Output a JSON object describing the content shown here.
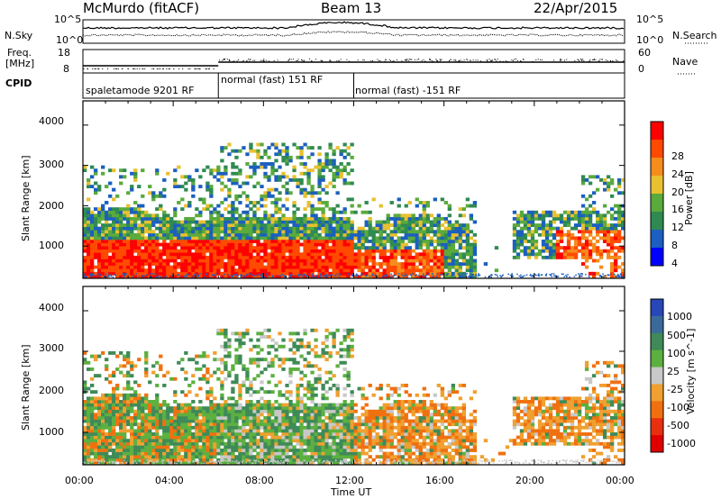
{
  "header": {
    "station": "McMurdo (fitACF)",
    "beam": "Beam 13",
    "date": "22/Apr/2015"
  },
  "strips": {
    "nsky_label": "N.Sky",
    "nsearch_label": "N.Search",
    "nsky_ticks": [
      "10^5",
      "10^0"
    ],
    "nsearch_ticks": [
      "10^5",
      "10^0"
    ],
    "freq_label_1": "Freq.",
    "freq_label_2": "[MHz]",
    "freq_ticks": [
      "18",
      "8"
    ],
    "nave_label": "Nave",
    "nave_ticks": [
      "60",
      "0"
    ],
    "cpid_label": "CPID",
    "cpid_segments": [
      {
        "label": "spaletamode 9201 RF",
        "start_hour": 0.0
      },
      {
        "label": "normal (fast) 151 RF",
        "start_hour": 6.0
      },
      {
        "label": "normal (fast) -151 RF",
        "start_hour": 12.0
      }
    ]
  },
  "chart_data": [
    {
      "type": "heatmap",
      "name": "Power",
      "ylabel": "Slant Range [km]",
      "ylim": [
        200,
        4600
      ],
      "yticks": [
        1000,
        2000,
        3000,
        4000
      ],
      "xlim": [
        0,
        24
      ],
      "colorbar": {
        "label": "Power [dB]",
        "ticks": [
          "28",
          "24",
          "20",
          "16",
          "12",
          "8",
          "4"
        ],
        "colors": [
          "#0000ff",
          "#1b5fc0",
          "#2f8a52",
          "#5aaa3c",
          "#e8c030",
          "#f58c1c",
          "#ff4a00",
          "#ff0000"
        ]
      }
    },
    {
      "type": "heatmap",
      "name": "Velocity",
      "ylabel": "Slant Range [km]",
      "ylim": [
        200,
        4600
      ],
      "yticks": [
        1000,
        2000,
        3000,
        4000
      ],
      "xlim": [
        0,
        24
      ],
      "colorbar": {
        "label": "Velocity [m s^-1]",
        "ticks": [
          "1000",
          "500",
          "100",
          "25",
          "-25",
          "-100",
          "-500",
          "-1000"
        ],
        "colors": [
          "#2848b8",
          "#3a6a9a",
          "#3f8a58",
          "#5cb040",
          "#c8c8c8",
          "#f0a030",
          "#f07010",
          "#e83010",
          "#e00000"
        ]
      }
    }
  ],
  "xaxis": {
    "label": "Time UT",
    "ticks": [
      "00:00",
      "04:00",
      "08:00",
      "12:00",
      "16:00",
      "20:00",
      "00:00"
    ]
  }
}
